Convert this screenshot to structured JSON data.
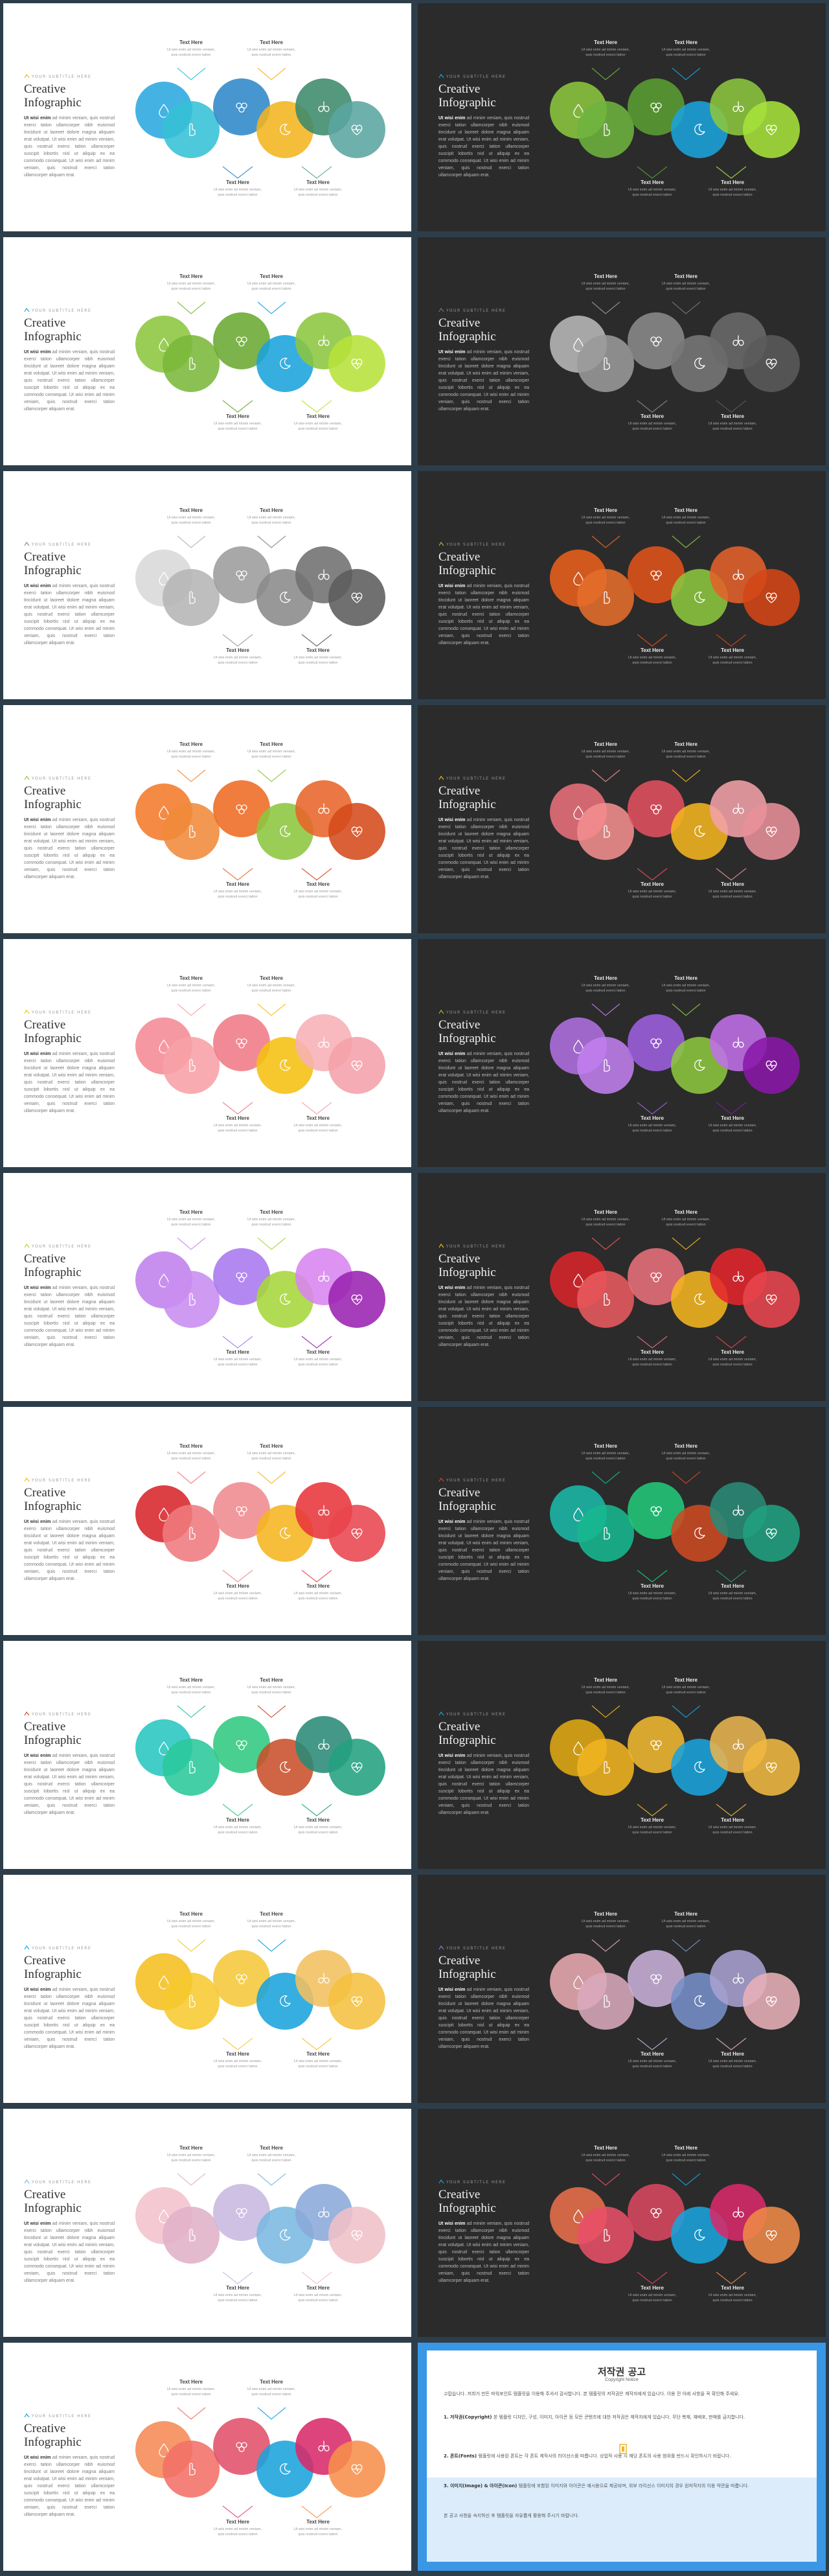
{
  "template": {
    "eyebrow": "YOUR SUBTITLE HERE",
    "title_line1": "Creative",
    "title_line2": "Infographic",
    "body_lead": "Ut wisi enim",
    "body_rest": "ad minim veniam, quis nostrud exerci tation ullamcorper nibh euismod tincidunt ut laoreet dolore magna aliquam erat volutpat. Ut wisi enim ad minim veniam, quis nostrud exerci tation ullamcorper suscipit lobortis nisl ut aliquip ex ea commodo consequat. Ut wisi enim ad minim veniam, quis nostrud exerci tation ullamcorper aliquam erat.",
    "labels": [
      {
        "head": "Text Here",
        "sub1": "Ut wisi enim ad minim veniam,",
        "sub2": "quis nostrud exerci tation"
      },
      {
        "head": "Text Here",
        "sub1": "Ut wisi enim ad minim veniam,",
        "sub2": "quis nostrud exerci tation"
      },
      {
        "head": "Text Here",
        "sub1": "Ut wisi enim ad minim veniam,",
        "sub2": "quis nostrud exerci tation"
      },
      {
        "head": "Text Here",
        "sub1": "Ut wisi enim ad minim veniam,",
        "sub2": "quis nostrud exerci tation"
      }
    ],
    "icons": [
      "droplet-icon",
      "hand-pointer-icon",
      "ecology-icon",
      "moon-icon",
      "lungs-icon",
      "heart-pulse-icon"
    ]
  },
  "slides": [
    {
      "theme": "light",
      "colors": [
        "#2aa9e0",
        "#35c0d6",
        "#2f87c8",
        "#f2b51f",
        "#3c8a6b",
        "#5aa5a0"
      ]
    },
    {
      "theme": "dark",
      "colors": [
        "#8cc63f",
        "#6db33f",
        "#5a9e32",
        "#1aa3dc",
        "#8cc63f",
        "#a6e23a"
      ]
    },
    {
      "theme": "light",
      "colors": [
        "#8cc63f",
        "#7ab83a",
        "#6aa832",
        "#1aa3dc",
        "#8cc63f",
        "#b6e23a"
      ]
    },
    {
      "theme": "dark",
      "colors": [
        "#b8b8b8",
        "#9a9a9a",
        "#8a8a8a",
        "#777777",
        "#6a6a6a",
        "#5a5a5a"
      ]
    },
    {
      "theme": "light",
      "colors": [
        "#d8d8d8",
        "#b5b5b5",
        "#9c9c9c",
        "#8a8a8a",
        "#707070",
        "#5c5c5c"
      ]
    },
    {
      "theme": "dark",
      "colors": [
        "#e8601c",
        "#e56d2b",
        "#e0531a",
        "#8cc63f",
        "#e2612a",
        "#d44617"
      ]
    },
    {
      "theme": "light",
      "colors": [
        "#f47a2a",
        "#f08a3a",
        "#ee6a22",
        "#8cc63f",
        "#e8642a",
        "#d54a1b"
      ]
    },
    {
      "theme": "dark",
      "colors": [
        "#e8707a",
        "#f28e8e",
        "#e25060",
        "#f2b51f",
        "#f2a0a8",
        "#e8909a"
      ]
    },
    {
      "theme": "light",
      "colors": [
        "#f58a94",
        "#f7a0a6",
        "#f07a86",
        "#f5c010",
        "#f7b0b6",
        "#f5a0aa"
      ]
    },
    {
      "theme": "dark",
      "colors": [
        "#b06fe0",
        "#c080ee",
        "#9d60e0",
        "#8cc63f",
        "#c070e8",
        "#8a18a8"
      ]
    },
    {
      "theme": "light",
      "colors": [
        "#c081ec",
        "#c88df0",
        "#a878ee",
        "#a6d63a",
        "#d884ef",
        "#9a22b0"
      ]
    },
    {
      "theme": "dark",
      "colors": [
        "#d7262a",
        "#e85a5e",
        "#e8707a",
        "#f2b51f",
        "#e2262c",
        "#e8464e"
      ]
    },
    {
      "theme": "light",
      "colors": [
        "#d7262a",
        "#ef7a7e",
        "#ef8a8e",
        "#f5b51f",
        "#e8363a",
        "#e8464e"
      ]
    },
    {
      "theme": "dark",
      "colors": [
        "#1ab8a8",
        "#17b890",
        "#22c87a",
        "#cc4a22",
        "#2a8a78",
        "#20a080"
      ]
    },
    {
      "theme": "light",
      "colors": [
        "#28c6c0",
        "#2ac89a",
        "#30c880",
        "#c8502a",
        "#2a8a78",
        "#22a080"
      ]
    },
    {
      "theme": "dark",
      "colors": [
        "#e0a812",
        "#f0b420",
        "#f0b830",
        "#1aa3dc",
        "#e8b450",
        "#f0b840"
      ]
    },
    {
      "theme": "light",
      "colors": [
        "#f5bf20",
        "#f7c930",
        "#f5c83a",
        "#1aa3dc",
        "#f2c060",
        "#f5c040"
      ]
    },
    {
      "theme": "dark",
      "colors": [
        "#e8a8b0",
        "#d8a8bc",
        "#c8b0d8",
        "#7890c8",
        "#a8a0d0",
        "#e8b0b8"
      ]
    },
    {
      "theme": "light",
      "colors": [
        "#f3c2cc",
        "#e0b0c8",
        "#c8b8e0",
        "#7ab8e0",
        "#8aa8d8",
        "#f0c0c8"
      ]
    },
    {
      "theme": "dark",
      "colors": [
        "#e8704a",
        "#e85068",
        "#d84860",
        "#1aa3dc",
        "#d82a6a",
        "#ee8a48"
      ]
    },
    {
      "theme": "light",
      "colors": [
        "#f58a54",
        "#f27068",
        "#e0506a",
        "#1aa3dc",
        "#d82a6a",
        "#f7904c"
      ]
    }
  ],
  "copyright": {
    "title": "저작권 공고",
    "subtitle": "Copyright Notice",
    "intro": "고맙습니다. 저희가 만든 파워포인트 템플릿을 이용해 주셔서 감사합니다. 본 템플릿의 저작권은 제작자에게 있습니다. 이용 전 아래 사항을 꼭 확인해 주세요.",
    "p1_head": "1. 저작권(Copyright)",
    "p1_body": "본 템플릿 디자인, 구성, 이미지, 아이콘 등 모든 콘텐츠에 대한 저작권은 제작자에게 있습니다. 무단 복제, 재배포, 판매를 금지합니다.",
    "p2_head": "2. 폰트(Fonts)",
    "p2_body": "템플릿에 사용된 폰트는 각 폰트 제작사의 라이선스를 따릅니다. 상업적 사용 시 해당 폰트의 사용 범위를 반드시 확인하시기 바랍니다.",
    "p3_head": "3. 이미지(Image) & 아이콘(Icon)",
    "p3_body": "템플릿에 포함된 이미지와 아이콘은 예시용으로 제공되며, 외부 라이선스 이미지의 경우 원저작자의 이용 약관을 따릅니다.",
    "outro": "본 공고 사항을 숙지하신 후 템플릿을 자유롭게 활용해 주시기 바랍니다."
  }
}
